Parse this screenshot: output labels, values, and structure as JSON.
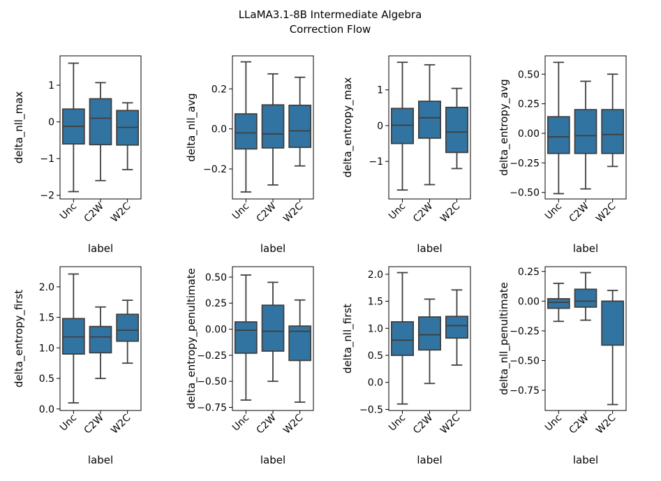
{
  "figure": {
    "title_line1": "LLaMA3.1-8B Intermediate Algebra",
    "title_line2": "Correction Flow"
  },
  "colors": {
    "box_fill": "#3274a1",
    "box_edge": "#3f3f3f",
    "axis": "#000000"
  },
  "chart_data": [
    {
      "type": "box",
      "xlabel": "label",
      "ylabel": "delta_nll_max",
      "categories": [
        "Unc",
        "C2W",
        "W2C"
      ],
      "ylim": [
        -2.1,
        1.8
      ],
      "yticks": [
        -2,
        -1,
        0,
        1
      ],
      "ytick_labels": [
        "−2",
        "−1",
        "0",
        "1"
      ],
      "boxes": [
        {
          "whislo": -1.9,
          "q1": -0.6,
          "med": -0.12,
          "q3": 0.35,
          "whishi": 1.6
        },
        {
          "whislo": -1.6,
          "q1": -0.62,
          "med": 0.1,
          "q3": 0.63,
          "whishi": 1.07
        },
        {
          "whislo": -1.3,
          "q1": -0.63,
          "med": -0.15,
          "q3": 0.31,
          "whishi": 0.52
        }
      ]
    },
    {
      "type": "box",
      "xlabel": "label",
      "ylabel": "delta_nll_avg",
      "categories": [
        "Unc",
        "C2W",
        "W2C"
      ],
      "ylim": [
        -0.35,
        0.365
      ],
      "yticks": [
        -0.2,
        0.0,
        0.2
      ],
      "ytick_labels": [
        "−0.2",
        "0.0",
        "0.2"
      ],
      "boxes": [
        {
          "whislo": -0.315,
          "q1": -0.1,
          "med": -0.02,
          "q3": 0.075,
          "whishi": 0.335
        },
        {
          "whislo": -0.28,
          "q1": -0.095,
          "med": -0.025,
          "q3": 0.12,
          "whishi": 0.275
        },
        {
          "whislo": -0.185,
          "q1": -0.092,
          "med": -0.01,
          "q3": 0.118,
          "whishi": 0.258
        }
      ]
    },
    {
      "type": "box",
      "xlabel": "label",
      "ylabel": "delta_entropy_max",
      "categories": [
        "Unc",
        "C2W",
        "W2C"
      ],
      "ylim": [
        -2.05,
        1.95
      ],
      "yticks": [
        -1,
        0,
        1
      ],
      "ytick_labels": [
        "−1",
        "0",
        "1"
      ],
      "boxes": [
        {
          "whislo": -1.8,
          "q1": -0.5,
          "med": 0.01,
          "q3": 0.48,
          "whishi": 1.77
        },
        {
          "whislo": -1.65,
          "q1": -0.35,
          "med": 0.22,
          "q3": 0.68,
          "whishi": 1.7
        },
        {
          "whislo": -1.2,
          "q1": -0.75,
          "med": -0.18,
          "q3": 0.51,
          "whishi": 1.04
        }
      ]
    },
    {
      "type": "box",
      "xlabel": "label",
      "ylabel": "delta_entropy_avg",
      "categories": [
        "Unc",
        "C2W",
        "W2C"
      ],
      "ylim": [
        -0.555,
        0.655
      ],
      "yticks": [
        -0.5,
        -0.25,
        0.0,
        0.25,
        0.5
      ],
      "ytick_labels": [
        "−0.50",
        "−0.25",
        "0.00",
        "0.25",
        "0.50"
      ],
      "boxes": [
        {
          "whislo": -0.51,
          "q1": -0.17,
          "med": -0.03,
          "q3": 0.14,
          "whishi": 0.6
        },
        {
          "whislo": -0.47,
          "q1": -0.17,
          "med": -0.02,
          "q3": 0.2,
          "whishi": 0.44
        },
        {
          "whislo": -0.28,
          "q1": -0.17,
          "med": -0.01,
          "q3": 0.2,
          "whishi": 0.5
        }
      ]
    },
    {
      "type": "box",
      "xlabel": "label",
      "ylabel": "delta_entropy_first",
      "categories": [
        "Unc",
        "C2W",
        "W2C"
      ],
      "ylim": [
        -0.025,
        2.33
      ],
      "yticks": [
        0.0,
        0.5,
        1.0,
        1.5,
        2.0
      ],
      "ytick_labels": [
        "0.0",
        "0.5",
        "1.0",
        "1.5",
        "2.0"
      ],
      "boxes": [
        {
          "whislo": 0.1,
          "q1": 0.9,
          "med": 1.18,
          "q3": 1.48,
          "whishi": 2.21
        },
        {
          "whislo": 0.5,
          "q1": 0.92,
          "med": 1.18,
          "q3": 1.35,
          "whishi": 1.67
        },
        {
          "whislo": 0.75,
          "q1": 1.11,
          "med": 1.29,
          "q3": 1.55,
          "whishi": 1.78
        }
      ]
    },
    {
      "type": "box",
      "xlabel": "label",
      "ylabel": "delta_entropy_penultimate",
      "categories": [
        "Unc",
        "C2W",
        "W2C"
      ],
      "ylim": [
        -0.78,
        0.6
      ],
      "yticks": [
        -0.75,
        -0.5,
        -0.25,
        0.0,
        0.25,
        0.5
      ],
      "ytick_labels": [
        "−0.75",
        "−0.50",
        "−0.25",
        "0.00",
        "0.25",
        "0.50"
      ],
      "boxes": [
        {
          "whislo": -0.68,
          "q1": -0.23,
          "med": -0.01,
          "q3": 0.07,
          "whishi": 0.52
        },
        {
          "whislo": -0.5,
          "q1": -0.21,
          "med": -0.02,
          "q3": 0.23,
          "whishi": 0.45
        },
        {
          "whislo": -0.7,
          "q1": -0.3,
          "med": -0.02,
          "q3": 0.03,
          "whishi": 0.28
        }
      ]
    },
    {
      "type": "box",
      "xlabel": "label",
      "ylabel": "delta_nll_first",
      "categories": [
        "Unc",
        "C2W",
        "W2C"
      ],
      "ylim": [
        -0.52,
        2.14
      ],
      "yticks": [
        -0.5,
        0.0,
        0.5,
        1.0,
        1.5,
        2.0
      ],
      "ytick_labels": [
        "−0.5",
        "0.0",
        "0.5",
        "1.0",
        "1.5",
        "2.0"
      ],
      "boxes": [
        {
          "whislo": -0.4,
          "q1": 0.5,
          "med": 0.78,
          "q3": 1.12,
          "whishi": 2.03
        },
        {
          "whislo": -0.02,
          "q1": 0.6,
          "med": 0.88,
          "q3": 1.21,
          "whishi": 1.54
        },
        {
          "whislo": 0.32,
          "q1": 0.82,
          "med": 1.05,
          "q3": 1.22,
          "whishi": 1.71
        }
      ]
    },
    {
      "type": "box",
      "xlabel": "label",
      "ylabel": "delta_nll_penultimate",
      "categories": [
        "Unc",
        "C2W",
        "W2C"
      ],
      "ylim": [
        -0.92,
        0.29
      ],
      "yticks": [
        -0.75,
        -0.5,
        -0.25,
        0.0,
        0.25
      ],
      "ytick_labels": [
        "−0.75",
        "−0.50",
        "−0.25",
        "0.00",
        "0.25"
      ],
      "boxes": [
        {
          "whislo": -0.17,
          "q1": -0.06,
          "med": -0.01,
          "q3": 0.02,
          "whishi": 0.15
        },
        {
          "whislo": -0.16,
          "q1": -0.05,
          "med": 0.0,
          "q3": 0.1,
          "whishi": 0.24
        },
        {
          "whislo": -0.87,
          "q1": -0.37,
          "med": 0.0,
          "q3": 0.0,
          "whishi": 0.09
        }
      ]
    }
  ]
}
